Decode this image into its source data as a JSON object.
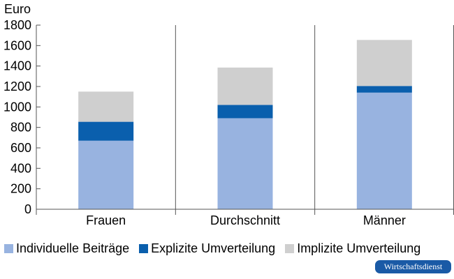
{
  "chart_data": {
    "type": "bar",
    "stacked": true,
    "ylabel": "Euro",
    "ylim": [
      0,
      1800
    ],
    "yticks": [
      "0",
      "200",
      "400",
      "600",
      "800",
      "1000",
      "1200",
      "1400",
      "1600",
      "1800"
    ],
    "categories": [
      "Frauen",
      "Durchschnitt",
      "Männer"
    ],
    "series": [
      {
        "name": "Individuelle Beiträge",
        "color": "#98b3e0",
        "values": [
          670,
          890,
          1140
        ]
      },
      {
        "name": "Explizite Umverteilung",
        "color": "#0a5fad",
        "values": [
          185,
          130,
          65
        ]
      },
      {
        "name": "Implizite Umverteilung",
        "color": "#cfcfcf",
        "values": [
          295,
          365,
          450
        ]
      }
    ],
    "grid": "vertical-separators",
    "legend": "bottom"
  },
  "badge": {
    "label": "Wirtschaftsdienst"
  }
}
